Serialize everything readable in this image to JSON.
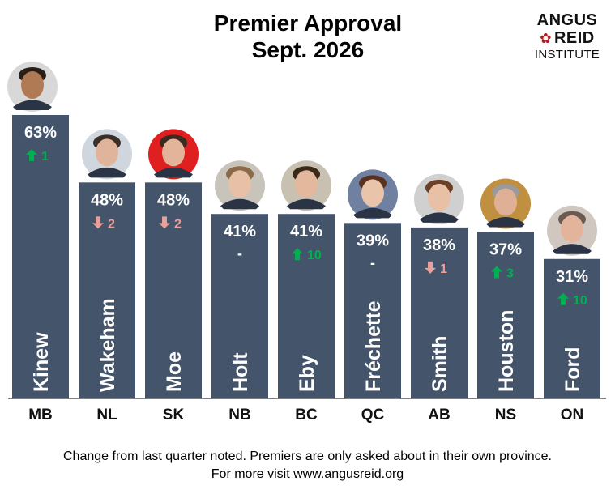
{
  "chart_data": {
    "type": "bar",
    "title": [
      "Premier Approval",
      "Sept. 2026"
    ],
    "categories": [
      "MB",
      "NL",
      "SK",
      "NB",
      "BC",
      "QC",
      "AB",
      "NS",
      "ON"
    ],
    "premiers": [
      "Kinew",
      "Wakeham",
      "Moe",
      "Holt",
      "Eby",
      "Fréchette",
      "Smith",
      "Houston",
      "Ford"
    ],
    "values": [
      63,
      48,
      48,
      41,
      41,
      39,
      38,
      37,
      31
    ],
    "value_labels": [
      "63%",
      "48%",
      "48%",
      "41%",
      "41%",
      "39%",
      "38%",
      "37%",
      "31%"
    ],
    "changes": [
      {
        "direction": "up",
        "text": "1"
      },
      {
        "direction": "down",
        "text": "2"
      },
      {
        "direction": "down",
        "text": "2"
      },
      {
        "direction": "none",
        "text": "-"
      },
      {
        "direction": "up",
        "text": "10"
      },
      {
        "direction": "none",
        "text": "-"
      },
      {
        "direction": "down",
        "text": "1"
      },
      {
        "direction": "up",
        "text": "3"
      },
      {
        "direction": "up",
        "text": "10"
      }
    ],
    "ylim": [
      0,
      70
    ],
    "xlabel": "",
    "ylabel": "",
    "grid": false,
    "legend": "none",
    "colors": {
      "bar": "#44546a",
      "up": "#00b050",
      "down": "#e8a09a",
      "text": "#ffffff",
      "axis": "#808080"
    }
  },
  "logo": {
    "line1": "ANGUS",
    "line2": "REID",
    "line3": "INSTITUTE",
    "icon": "maple-leaf-icon"
  },
  "footer": [
    "Change from last quarter noted. Premiers are only asked about in their own province.",
    "For more visit www.angusreid.org"
  ]
}
